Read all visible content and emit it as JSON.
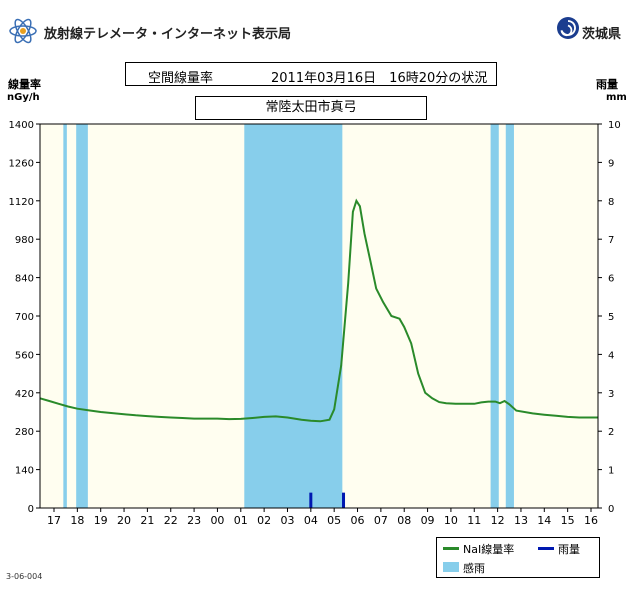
{
  "header": {
    "site_title": "放射線テレメータ・インターネット表示局",
    "prefecture": "茨城県"
  },
  "info": {
    "measure": "空間線量率",
    "datetime": "2011年03月16日　16時20分の状況",
    "station": "常陸太田市真弓"
  },
  "axis_caption": {
    "left_title": "線量率",
    "left_unit": "nGy/h",
    "right_title": "雨量",
    "right_unit": "mm"
  },
  "footer_code": "3-06-004",
  "colors": {
    "plot_bg": "#fffef0",
    "nai_line": "#2a8a2a",
    "rain_bar": "#0018b0",
    "sense_rain": "#87ceeb"
  },
  "chart_data": {
    "type": "line",
    "x_tick_labels": [
      "17",
      "18",
      "19",
      "20",
      "21",
      "22",
      "23",
      "00",
      "01",
      "02",
      "03",
      "04",
      "05",
      "06",
      "07",
      "08",
      "09",
      "10",
      "11",
      "12",
      "13",
      "14",
      "15",
      "16"
    ],
    "left_axis": {
      "ylim": [
        0,
        1400
      ],
      "ticks": [
        0,
        140,
        280,
        420,
        560,
        700,
        840,
        980,
        1120,
        1260,
        1400
      ]
    },
    "right_axis": {
      "ylim": [
        0,
        10
      ],
      "ticks": [
        0,
        1,
        2,
        3,
        4,
        5,
        6,
        7,
        8,
        9,
        10
      ]
    },
    "x_range_hours": [
      -0.6,
      23.3
    ],
    "series": [
      {
        "name": "NaI線量率",
        "axis": "left",
        "x": [
          -0.6,
          -0.2,
          0.2,
          0.6,
          1,
          1.5,
          2,
          2.5,
          3,
          3.5,
          4,
          4.5,
          5,
          5.5,
          6,
          6.5,
          7,
          7.5,
          8,
          8.5,
          9,
          9.5,
          10,
          10.3,
          10.6,
          11,
          11.4,
          11.8,
          12,
          12.3,
          12.6,
          12.8,
          12.95,
          13.1,
          13.3,
          13.55,
          13.8,
          14.1,
          14.45,
          14.8,
          15,
          15.3,
          15.6,
          15.9,
          16.2,
          16.5,
          16.8,
          17.2,
          17.6,
          18,
          18.3,
          18.6,
          18.9,
          19.1,
          19.3,
          19.5,
          19.8,
          20.5,
          21,
          21.5,
          22,
          22.5,
          23.3
        ],
        "y": [
          400,
          390,
          380,
          370,
          362,
          356,
          350,
          346,
          342,
          338,
          335,
          332,
          330,
          328,
          326,
          326,
          326,
          324,
          325,
          328,
          332,
          334,
          330,
          326,
          322,
          318,
          316,
          322,
          360,
          520,
          820,
          1080,
          1120,
          1100,
          1000,
          900,
          800,
          750,
          700,
          690,
          660,
          600,
          490,
          420,
          400,
          386,
          382,
          380,
          380,
          380,
          385,
          388,
          388,
          382,
          390,
          378,
          355,
          345,
          340,
          336,
          332,
          330,
          330
        ]
      },
      {
        "name": "雨量",
        "axis": "right",
        "type": "bar",
        "x": [
          11.0,
          12.4
        ],
        "y": [
          0.4,
          0.4
        ]
      }
    ],
    "sense_rain_intervals": [
      [
        0.4,
        0.55
      ],
      [
        0.95,
        1.45
      ],
      [
        8.15,
        12.35
      ],
      [
        18.7,
        19.05
      ],
      [
        19.35,
        19.7
      ]
    ],
    "legend": [
      "NaI線量率",
      "雨量",
      "感雨"
    ],
    "grid": false
  }
}
